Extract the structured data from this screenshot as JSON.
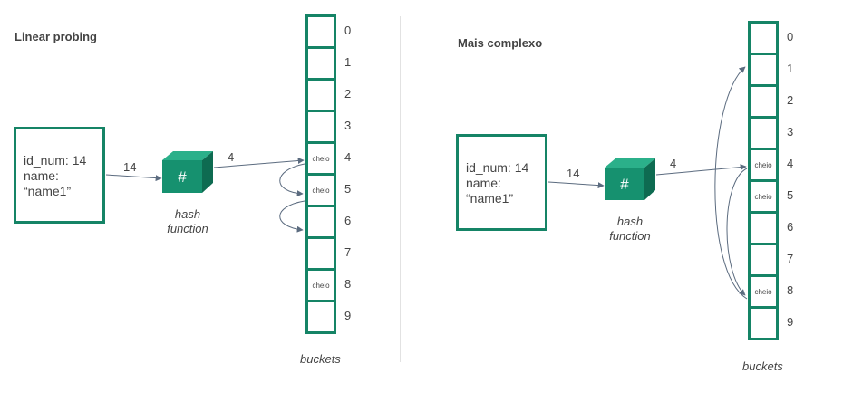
{
  "left": {
    "title": "Linear probing",
    "record": {
      "line1": "id_num: 14",
      "line2": "name:",
      "line3": "“name1”"
    },
    "input_label": "14",
    "hash_symbol": "#",
    "hash_caption_1": "hash",
    "hash_caption_2": "function",
    "output_label": "4",
    "buckets_caption": "buckets",
    "buckets": [
      {
        "index": "0",
        "content": ""
      },
      {
        "index": "1",
        "content": ""
      },
      {
        "index": "2",
        "content": ""
      },
      {
        "index": "3",
        "content": ""
      },
      {
        "index": "4",
        "content": "cheio"
      },
      {
        "index": "5",
        "content": "cheio"
      },
      {
        "index": "6",
        "content": ""
      },
      {
        "index": "7",
        "content": ""
      },
      {
        "index": "8",
        "content": "cheio"
      },
      {
        "index": "9",
        "content": ""
      }
    ]
  },
  "right": {
    "title": "Mais complexo",
    "record": {
      "line1": "id_num: 14",
      "line2": "name:",
      "line3": "“name1”"
    },
    "input_label": "14",
    "hash_symbol": "#",
    "hash_caption_1": "hash",
    "hash_caption_2": "function",
    "output_label": "4",
    "buckets_caption": "buckets",
    "buckets": [
      {
        "index": "0",
        "content": ""
      },
      {
        "index": "1",
        "content": ""
      },
      {
        "index": "2",
        "content": ""
      },
      {
        "index": "3",
        "content": ""
      },
      {
        "index": "4",
        "content": "cheio"
      },
      {
        "index": "5",
        "content": "cheio"
      },
      {
        "index": "6",
        "content": ""
      },
      {
        "index": "7",
        "content": ""
      },
      {
        "index": "8",
        "content": "cheio"
      },
      {
        "index": "9",
        "content": ""
      }
    ]
  },
  "colors": {
    "accent": "#158466",
    "cube_front": "#16916f",
    "cube_top": "#2bb08a",
    "cube_side": "#0e6b51",
    "arrow": "#5b6b7f"
  }
}
